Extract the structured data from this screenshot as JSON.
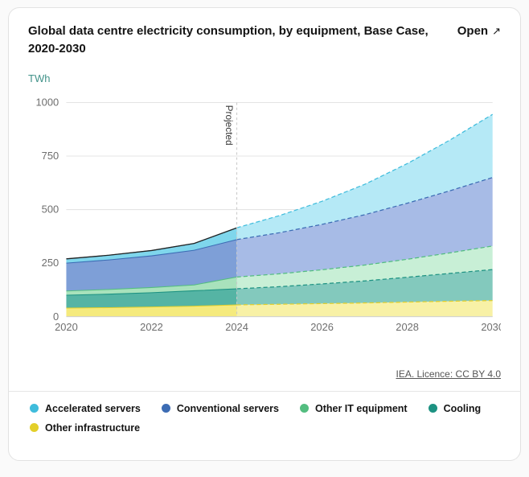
{
  "card": {
    "title": "Global data centre electricity consumption, by equipment, Base Case, 2020-2030",
    "open_label": "Open",
    "open_icon": "↗",
    "unit_label": "TWh",
    "license_text": "IEA. Licence: CC BY 4.0"
  },
  "chart_data": {
    "type": "area",
    "stacked": true,
    "title": "Global data centre electricity consumption, by equipment, Base Case, 2020-2030",
    "ylabel": "TWh",
    "ylim": [
      0,
      1000
    ],
    "y_ticks": [
      0,
      250,
      500,
      750,
      1000
    ],
    "x": [
      2020,
      2021,
      2022,
      2023,
      2024,
      2025,
      2026,
      2027,
      2028,
      2029,
      2030
    ],
    "x_ticks": [
      2020,
      2022,
      2024,
      2026,
      2028,
      2030
    ],
    "projected_from": 2024,
    "projected_label": "Projected",
    "grid": true,
    "legend_position": "bottom",
    "series": [
      {
        "name": "Accelerated servers",
        "line": "#3fbcdc",
        "fill": "#7fd6ec",
        "fill_projected": "#b5e9f6",
        "values": [
          20,
          22,
          25,
          32,
          55,
          80,
          108,
          142,
          185,
          237,
          295
        ]
      },
      {
        "name": "Conventional servers",
        "line": "#3c6cb4",
        "fill": "#7e9fd7",
        "fill_projected": "#a7bbe6",
        "values": [
          130,
          138,
          148,
          162,
          175,
          192,
          212,
          235,
          262,
          290,
          320
        ]
      },
      {
        "name": "Other IT equipment",
        "line": "#53bd80",
        "fill": "#a8e2bc",
        "fill_projected": "#c8efd6",
        "values": [
          20,
          22,
          24,
          27,
          55,
          60,
          66,
          74,
          84,
          96,
          110
        ]
      },
      {
        "name": "Cooling",
        "line": "#1d9282",
        "fill": "#55b4a4",
        "fill_projected": "#83c9bd",
        "values": [
          60,
          63,
          67,
          72,
          75,
          82,
          92,
          103,
          116,
          130,
          145
        ]
      },
      {
        "name": "Other infrastructure",
        "line": "#e3cf2a",
        "fill": "#f5ea7d",
        "fill_projected": "#f8f1a6",
        "values": [
          40,
          42,
          45,
          49,
          55,
          58,
          61,
          64,
          68,
          72,
          75
        ]
      }
    ]
  }
}
